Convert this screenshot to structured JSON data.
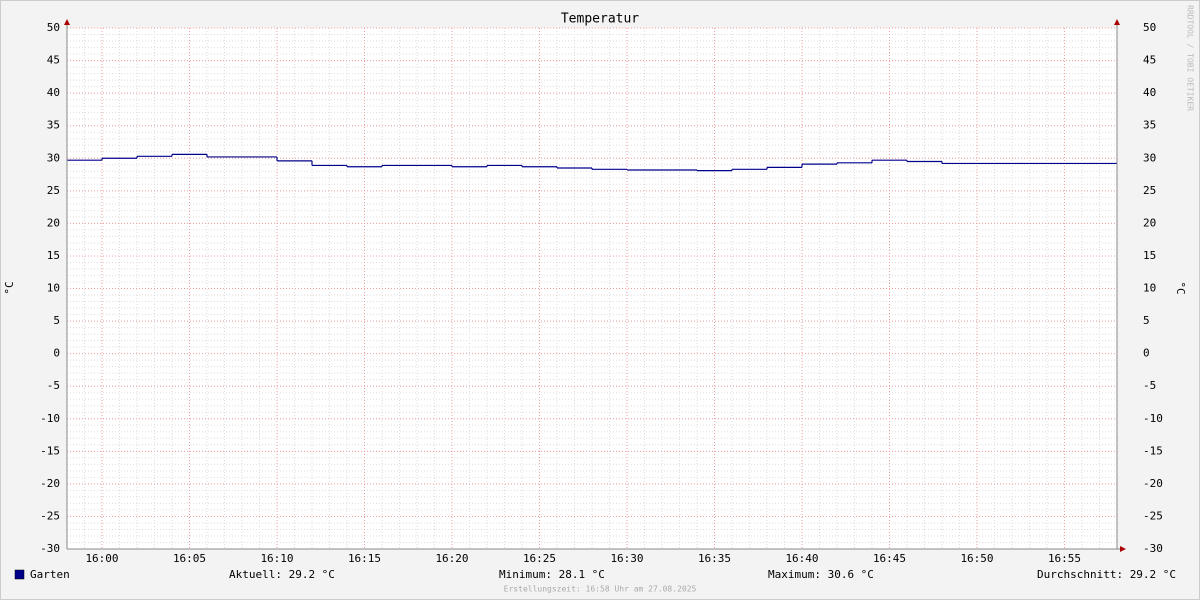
{
  "chart_data": {
    "type": "step",
    "title": "Temperatur",
    "y_label": "°C",
    "x": [
      958,
      960,
      962,
      964,
      966,
      968,
      970,
      972,
      974,
      976,
      978,
      980,
      982,
      984,
      986,
      988,
      990,
      992,
      994,
      996,
      998,
      1000,
      1002,
      1004,
      1006,
      1008,
      1010,
      1012,
      1014,
      1016
    ],
    "series": [
      {
        "name": "Garten",
        "color": "#00008b",
        "values": [
          29.7,
          30.0,
          30.3,
          30.6,
          30.2,
          30.2,
          29.6,
          28.9,
          28.7,
          28.9,
          28.9,
          28.7,
          28.9,
          28.7,
          28.5,
          28.3,
          28.2,
          28.2,
          28.1,
          28.3,
          28.6,
          29.1,
          29.3,
          29.7,
          29.5,
          29.2,
          29.2,
          29.2,
          29.2,
          29.2
        ]
      }
    ],
    "xlim": [
      958,
      1018
    ],
    "xticks": [
      {
        "value": 960,
        "label": "16:00"
      },
      {
        "value": 965,
        "label": "16:05"
      },
      {
        "value": 970,
        "label": "16:10"
      },
      {
        "value": 975,
        "label": "16:15"
      },
      {
        "value": 980,
        "label": "16:20"
      },
      {
        "value": 985,
        "label": "16:25"
      },
      {
        "value": 990,
        "label": "16:30"
      },
      {
        "value": 995,
        "label": "16:35"
      },
      {
        "value": 1000,
        "label": "16:40"
      },
      {
        "value": 1005,
        "label": "16:45"
      },
      {
        "value": 1010,
        "label": "16:50"
      },
      {
        "value": 1015,
        "label": "16:55"
      }
    ],
    "ylim": [
      -30,
      50
    ],
    "yticks": [
      -30,
      -25,
      -20,
      -15,
      -10,
      -5,
      0,
      5,
      10,
      15,
      20,
      25,
      30,
      35,
      40,
      45,
      50
    ],
    "grid": true,
    "minor_grid": {
      "x": 1,
      "y": 1
    },
    "stats": [
      {
        "label": "Aktuell:",
        "value": 29.2,
        "unit": "°C"
      },
      {
        "label": "Minimum:",
        "value": 28.1,
        "unit": "°C"
      },
      {
        "label": "Maximum:",
        "value": 30.6,
        "unit": "°C"
      },
      {
        "label": "Durchschnitt:",
        "value": 29.2,
        "unit": "°C"
      }
    ],
    "watermark": "RRDTOOL / TOBI OETIKER",
    "footer": "Erstellungszeit: 16:58 Uhr am 27.08.2025"
  }
}
